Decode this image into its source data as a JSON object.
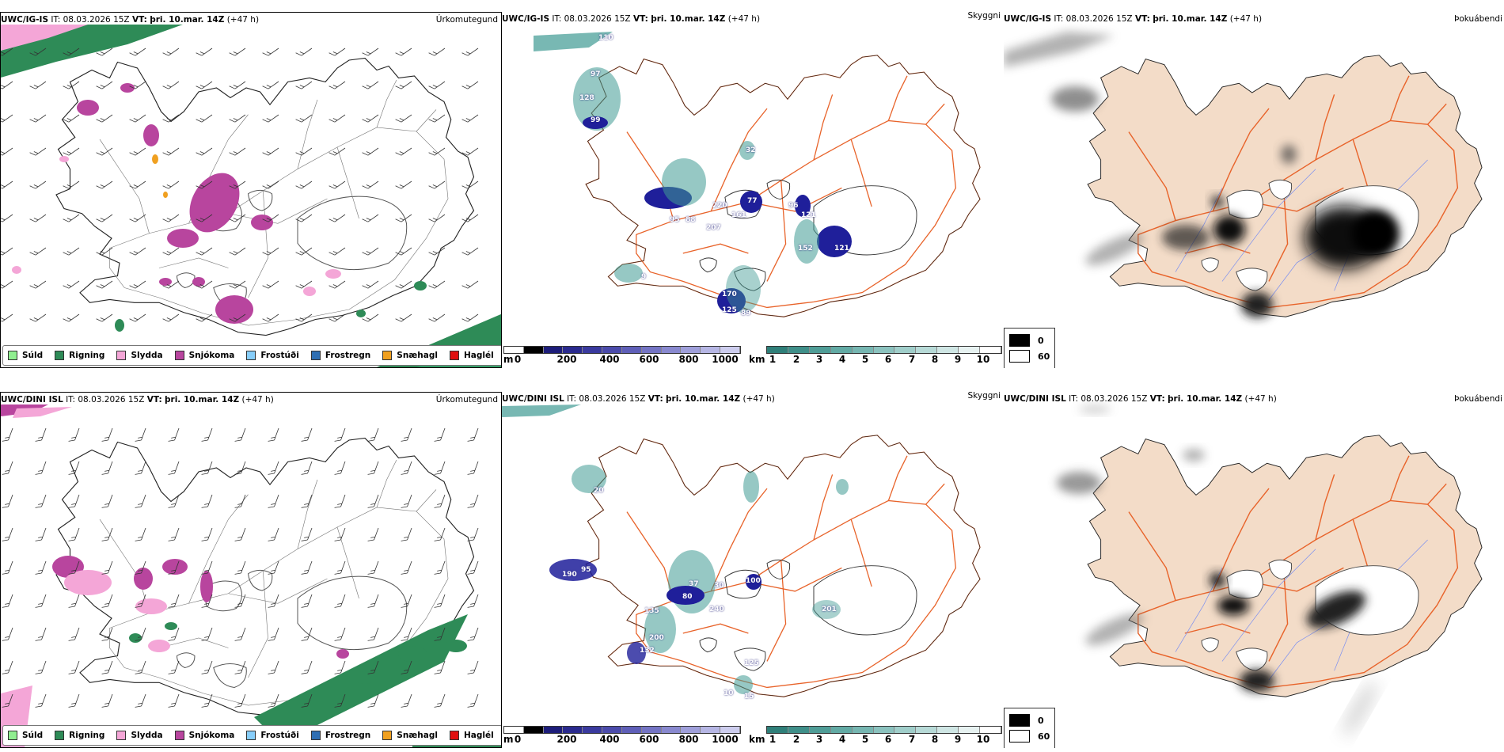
{
  "rows": [
    {
      "model": "UWC/IG-IS",
      "it_label": "IT:",
      "it_value": "08.03.2026 15Z",
      "vt_label": "VT:",
      "vt_value": "þri. 10.mar. 14Z",
      "lead": "(+47 h)",
      "precip_title": "Úrkomutegund",
      "vis_title": "Skyggni",
      "fog_title": "Þokuábendi",
      "wind_labels": [
        "110",
        "97",
        "128",
        "99",
        "32",
        "77",
        "96",
        "121",
        "88",
        "95",
        "220",
        "207",
        "161",
        "152",
        "121",
        "9",
        "170",
        "125",
        "89"
      ]
    },
    {
      "model": "UWC/DINI ISL",
      "it_label": "IT:",
      "it_value": "08.03.2026 15Z",
      "vt_label": "VT:",
      "vt_value": "þri. 10.mar. 14Z",
      "lead": "(+47 h)",
      "precip_title": "Úrkomutegund",
      "vis_title": "Skyggni",
      "fog_title": "Þokuábendi",
      "wind_labels": [
        "20",
        "95",
        "190",
        "37",
        "30",
        "100",
        "80",
        "240",
        "201",
        "135",
        "200",
        "132",
        "125",
        "10",
        "15"
      ]
    }
  ],
  "precip_legend": [
    {
      "label": "Súld",
      "color": "#90ee90"
    },
    {
      "label": "Rigning",
      "color": "#2e8b57"
    },
    {
      "label": "Slydda",
      "color": "#f4a6d7"
    },
    {
      "label": "Snjókoma",
      "color": "#b8459e"
    },
    {
      "label": "Frostúði",
      "color": "#87cefa"
    },
    {
      "label": "Frostregn",
      "color": "#2f6fb3"
    },
    {
      "label": "Snæhagl",
      "color": "#f0a020"
    },
    {
      "label": "Haglél",
      "color": "#e01010"
    }
  ],
  "height_bar": {
    "unit": "m",
    "ticks": [
      "0",
      "200",
      "400",
      "600",
      "800",
      "1000"
    ]
  },
  "vis_bar": {
    "unit": "km",
    "ticks": [
      "1",
      "2",
      "3",
      "4",
      "5",
      "6",
      "7",
      "8",
      "9",
      "10"
    ]
  },
  "fog_legend": [
    {
      "label": "0",
      "color": "#000000"
    },
    {
      "label": "60",
      "color": "#ffffff"
    }
  ],
  "colors": {
    "land_fog": "#f3dcc8",
    "roads": "#e8632a",
    "rivers": "#7b8ff0",
    "cloud_dark": "#1f1f9a",
    "teal": "#3f9a93",
    "rain": "#2e8b57",
    "snow": "#b8459e",
    "sleet": "#f4a6d7"
  }
}
